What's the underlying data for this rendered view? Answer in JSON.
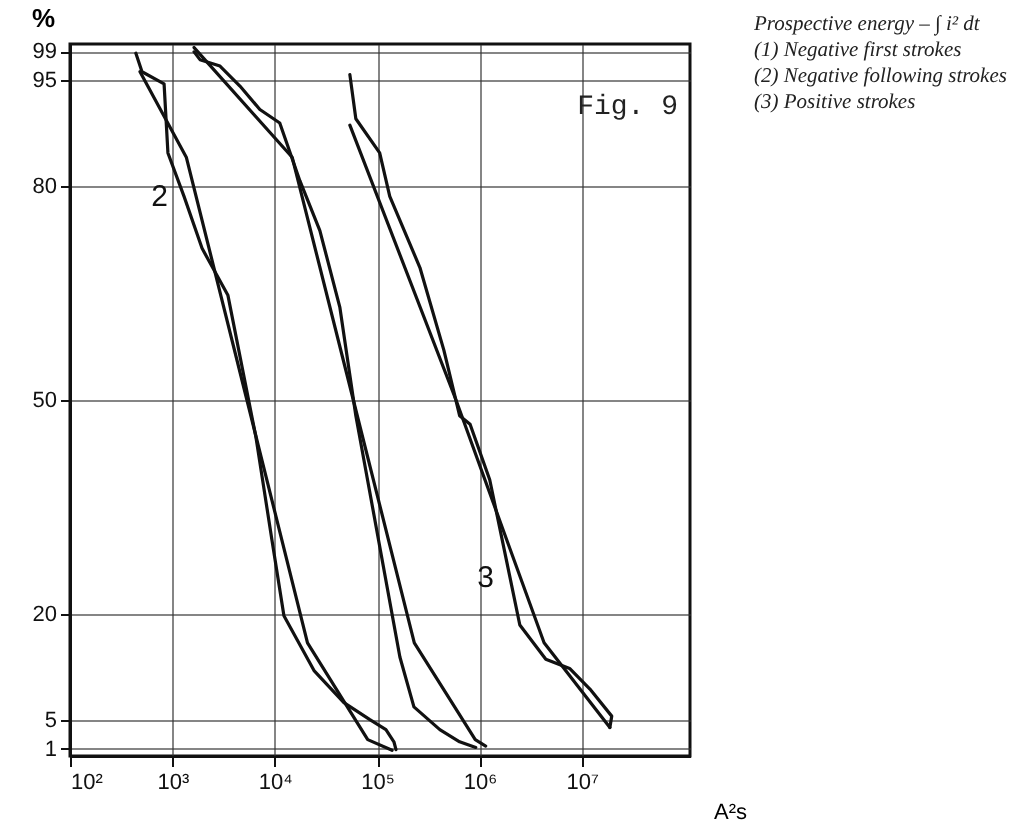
{
  "chart_data": {
    "type": "line",
    "title": "Fig. 9",
    "subtitle": "Prospective energy – ∫ i² dt",
    "xlabel": "A²s",
    "ylabel": "%",
    "log": "x",
    "grid": true,
    "xlim": [
      100,
      114000000
    ],
    "xticks": [
      {
        "value": 100,
        "label": "10²"
      },
      {
        "value": 1000,
        "label": "10³"
      },
      {
        "value": 10000,
        "label": "10⁴"
      },
      {
        "value": 100000,
        "label": "10⁵"
      },
      {
        "value": 1000000,
        "label": "10⁶"
      },
      {
        "value": 10000000,
        "label": "10⁷"
      }
    ],
    "ylim": [
      0,
      100
    ],
    "yticks": [
      1,
      5,
      20,
      50,
      80,
      95,
      99
    ],
    "annotations": [
      "(1) Negative first strokes",
      "(2) Negative following strokes",
      "(3) Positive strokes",
      {
        "text": "2",
        "x": 1300,
        "y": 78.6
      },
      {
        "text": "3",
        "x": 1980000,
        "y": 25.2
      }
    ],
    "series": [
      {
        "color": "#111111",
        "x": [
          483,
          1368,
          5350,
          20900,
          81000,
          140000
        ],
        "values": [
          96.1,
          84.1,
          50,
          15.9,
          2.3,
          0.8
        ]
      },
      {
        "color": "#111111",
        "x": [
          440,
          505,
          830,
          905,
          1300,
          1950,
          3490,
          6550,
          9400,
          12300,
          24200,
          47400,
          85000,
          122000,
          146000,
          153000
        ],
        "values": [
          98.7,
          96.1,
          94.4,
          84.7,
          78.6,
          71.3,
          64.7,
          44.8,
          30.3,
          19.7,
          12.0,
          7.5,
          5.1,
          3.7,
          2.0,
          0.9
        ]
      },
      {
        "color": "#111111",
        "x": [
          1630,
          14800,
          58600,
          231000,
          910000,
          1150000
        ],
        "values": [
          99.5,
          84.1,
          50,
          15.9,
          2.3,
          1.4
        ]
      },
      {
        "color": "#111111",
        "x": [
          1630,
          1860,
          2920,
          4570,
          7160,
          11200,
          17600,
          27600,
          43300,
          62000,
          167000,
          229000,
          410000,
          640000,
          920000
        ],
        "values": [
          98.9,
          97.8,
          96.9,
          94.1,
          90.8,
          88.9,
          80.8,
          73.8,
          63.0,
          47.8,
          13.9,
          6.9,
          3.7,
          2.0,
          1.2
        ]
      },
      {
        "color": "#111111",
        "x": [
          54200,
          590000,
          4280000,
          18800000
        ],
        "values": [
          88.6,
          50,
          15.9,
          4.0
        ]
      },
      {
        "color": "#111111",
        "x": [
          54200,
          62000,
          106000,
          133000,
          262000,
          449000,
          640000,
          810000,
          1260000,
          1980000,
          2480000,
          4450000,
          7600000,
          12000000,
          19600000,
          18800000
        ],
        "values": [
          95.7,
          89.5,
          84.7,
          78.6,
          68.6,
          57.0,
          47.8,
          46.6,
          38.8,
          25.2,
          18.4,
          13.6,
          12.3,
          9.4,
          5.6,
          4.0
        ]
      }
    ]
  }
}
